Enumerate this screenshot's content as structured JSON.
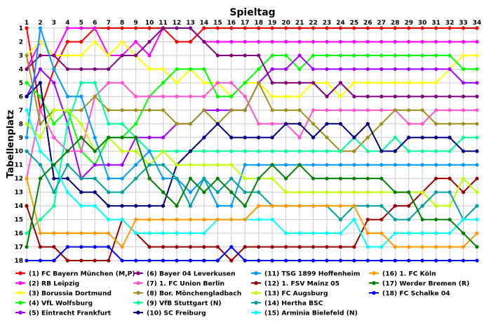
{
  "chart_data": {
    "type": "line",
    "title": "",
    "xlabel": "Spieltag",
    "ylabel": "Tabellenplatz",
    "x": [
      1,
      2,
      3,
      4,
      5,
      6,
      7,
      8,
      9,
      10,
      11,
      12,
      13,
      14,
      15,
      16,
      17,
      18,
      19,
      20,
      21,
      22,
      23,
      24,
      25,
      26,
      27,
      28,
      29,
      30,
      31,
      32,
      33,
      34
    ],
    "xlim": [
      1,
      34
    ],
    "ylim": [
      18,
      1
    ],
    "y_inverted": true,
    "yticks": [
      1,
      2,
      3,
      4,
      5,
      6,
      7,
      8,
      9,
      10,
      11,
      12,
      13,
      14,
      15,
      16,
      17,
      18
    ],
    "grid": true,
    "legend_position": "bottom",
    "series": [
      {
        "name": "(1) FC Bayern München (M,P)",
        "color": "#ff0000",
        "values": [
          1,
          7,
          4,
          2,
          2,
          1,
          1,
          1,
          1,
          1,
          1,
          2,
          2,
          1,
          1,
          1,
          1,
          1,
          1,
          1,
          1,
          1,
          1,
          1,
          1,
          1,
          1,
          1,
          1,
          1,
          1,
          1,
          1,
          1
        ]
      },
      {
        "name": "(2) RB Leipzig",
        "color": "#ff00ff",
        "values": [
          4,
          2,
          3,
          1,
          1,
          1,
          3,
          3,
          2,
          3,
          1,
          1,
          1,
          2,
          2,
          2,
          2,
          2,
          2,
          2,
          2,
          2,
          2,
          2,
          2,
          2,
          2,
          2,
          2,
          2,
          2,
          2,
          2,
          2
        ]
      },
      {
        "name": "(3) Borussia Dortmund",
        "color": "#ffff00",
        "values": [
          3,
          2,
          3,
          3,
          3,
          2,
          3,
          2,
          3,
          4,
          4,
          5,
          4,
          5,
          5,
          6,
          5,
          5,
          6,
          6,
          6,
          5,
          5,
          6,
          5,
          5,
          5,
          5,
          5,
          5,
          5,
          4,
          3,
          3
        ]
      },
      {
        "name": "(4) VfL Wolfsburg",
        "color": "#00ff00",
        "values": [
          5,
          6,
          8,
          7,
          10,
          11,
          9,
          9,
          8,
          6,
          5,
          4,
          4,
          4,
          6,
          6,
          5,
          4,
          3,
          3,
          4,
          3,
          3,
          3,
          3,
          3,
          3,
          3,
          3,
          3,
          3,
          3,
          4,
          4
        ]
      },
      {
        "name": "(5) Eintracht Frankfurt",
        "color": "#a000ff",
        "values": [
          6,
          4,
          5,
          8,
          12,
          11,
          11,
          11,
          9,
          9,
          9,
          8,
          8,
          7,
          7,
          7,
          7,
          5,
          4,
          4,
          3,
          4,
          4,
          4,
          4,
          4,
          4,
          4,
          4,
          4,
          4,
          4,
          5,
          5
        ]
      },
      {
        "name": "(6) Bayer 04 Leverkusen",
        "color": "#800080",
        "values": [
          4,
          3,
          3,
          4,
          4,
          4,
          4,
          3,
          3,
          2,
          1,
          1,
          1,
          2,
          3,
          3,
          3,
          3,
          5,
          5,
          5,
          5,
          6,
          5,
          6,
          6,
          6,
          6,
          6,
          6,
          6,
          6,
          6,
          6
        ]
      },
      {
        "name": "(7) 1. FC Union Berlin",
        "color": "#ff55cc",
        "values": [
          12,
          7,
          9,
          10,
          10,
          6,
          5,
          5,
          6,
          6,
          6,
          6,
          6,
          6,
          5,
          5,
          6,
          8,
          8,
          8,
          9,
          7,
          7,
          7,
          7,
          7,
          7,
          7,
          8,
          8,
          7,
          7,
          7,
          7
        ]
      },
      {
        "name": "(8) Bor. Mönchengladbach",
        "color": "#a09020",
        "values": [
          3,
          8,
          7,
          7,
          7,
          6,
          7,
          7,
          7,
          7,
          7,
          8,
          8,
          7,
          8,
          7,
          7,
          5,
          7,
          7,
          7,
          8,
          9,
          10,
          10,
          9,
          8,
          7,
          7,
          7,
          8,
          8,
          8,
          8
        ]
      },
      {
        "name": "(9) VfB Stuttgart (N)",
        "color": "#00ff99",
        "values": [
          16,
          15,
          14,
          8,
          5,
          5,
          8,
          8,
          9,
          10,
          10,
          10,
          10,
          10,
          10,
          10,
          10,
          10,
          10,
          10,
          10,
          10,
          10,
          10,
          9,
          10,
          10,
          9,
          10,
          10,
          10,
          10,
          9,
          9
        ]
      },
      {
        "name": "(10) SC Freiburg",
        "color": "#000080",
        "values": [
          6,
          5,
          12,
          12,
          13,
          13,
          14,
          14,
          14,
          14,
          14,
          11,
          10,
          9,
          8,
          9,
          9,
          9,
          9,
          8,
          8,
          9,
          8,
          8,
          9,
          8,
          10,
          10,
          9,
          9,
          9,
          9,
          10,
          10
        ]
      },
      {
        "name": "(11) TSG 1899 Hoffenheim",
        "color": "#0099ff",
        "values": [
          9,
          1,
          4,
          6,
          6,
          9,
          12,
          12,
          11,
          10,
          12,
          12,
          13,
          12,
          14,
          14,
          11,
          11,
          11,
          11,
          11,
          11,
          11,
          11,
          11,
          11,
          11,
          11,
          11,
          11,
          11,
          11,
          11,
          11
        ]
      },
      {
        "name": "(12) 1. FSV Mainz 05",
        "color": "#990000",
        "values": [
          14,
          17,
          17,
          18,
          18,
          18,
          18,
          15,
          16,
          17,
          17,
          17,
          17,
          17,
          17,
          18,
          17,
          17,
          17,
          17,
          17,
          17,
          17,
          17,
          17,
          15,
          15,
          14,
          14,
          13,
          12,
          12,
          13,
          12
        ]
      },
      {
        "name": "(13) FC Augsburg",
        "color": "#c0ff00",
        "values": [
          8,
          9,
          7,
          7,
          8,
          10,
          9,
          10,
          10,
          11,
          10,
          11,
          11,
          11,
          11,
          11,
          12,
          12,
          12,
          13,
          13,
          13,
          13,
          13,
          13,
          13,
          13,
          13,
          13,
          13,
          14,
          14,
          12,
          13
        ]
      },
      {
        "name": "(14) Hertha BSC",
        "color": "#00a0a0",
        "values": [
          10,
          11,
          13,
          11,
          12,
          12,
          13,
          13,
          12,
          11,
          11,
          12,
          14,
          12,
          13,
          12,
          13,
          13,
          14,
          14,
          14,
          14,
          14,
          15,
          14,
          14,
          14,
          15,
          15,
          14,
          13,
          13,
          15,
          14
        ]
      },
      {
        "name": "(15) Arminia Bielefeld (N)",
        "color": "#00ffff",
        "values": [
          7,
          10,
          11,
          13,
          14,
          14,
          15,
          15,
          16,
          16,
          16,
          16,
          16,
          16,
          15,
          15,
          15,
          15,
          15,
          16,
          16,
          16,
          16,
          16,
          15,
          17,
          17,
          16,
          16,
          16,
          16,
          16,
          15,
          15
        ]
      },
      {
        "name": "(16) 1. FC Köln",
        "color": "#ff9900",
        "values": [
          12,
          16,
          16,
          16,
          16,
          16,
          16,
          17,
          15,
          15,
          15,
          15,
          15,
          15,
          15,
          15,
          15,
          14,
          14,
          14,
          14,
          14,
          14,
          14,
          14,
          16,
          16,
          17,
          17,
          17,
          17,
          17,
          17,
          16
        ]
      },
      {
        "name": "(17) Werder Bremen (R)",
        "color": "#008000",
        "values": [
          17,
          12,
          11,
          10,
          9,
          10,
          9,
          9,
          9,
          12,
          13,
          14,
          12,
          13,
          12,
          13,
          14,
          12,
          11,
          12,
          11,
          12,
          12,
          12,
          12,
          12,
          12,
          13,
          13,
          15,
          15,
          15,
          16,
          17
        ]
      },
      {
        "name": "(18) FC Schalke 04",
        "color": "#0000ff",
        "values": [
          18,
          18,
          18,
          17,
          17,
          17,
          17,
          18,
          18,
          18,
          18,
          18,
          18,
          18,
          18,
          17,
          18,
          18,
          18,
          18,
          18,
          18,
          18,
          18,
          18,
          18,
          18,
          18,
          18,
          18,
          18,
          18,
          18,
          18
        ]
      }
    ]
  }
}
